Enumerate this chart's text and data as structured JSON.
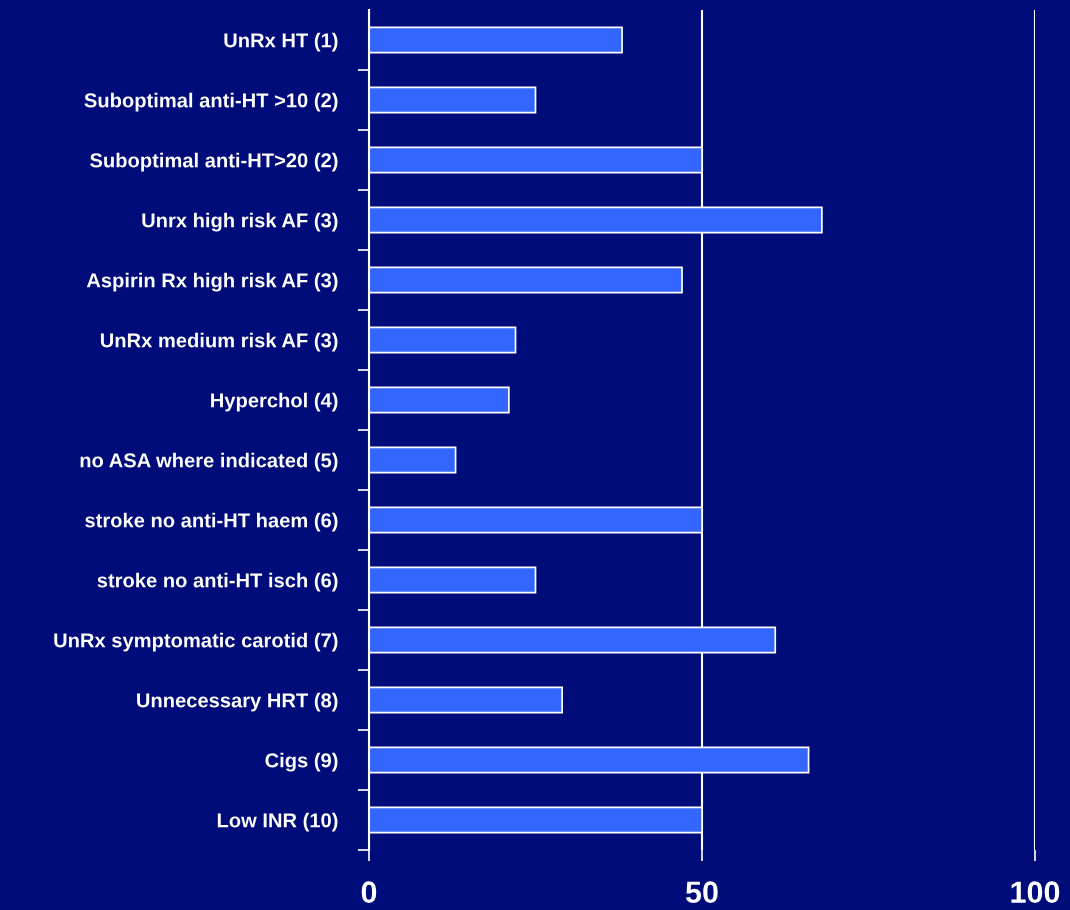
{
  "chart_data": {
    "type": "bar",
    "orientation": "horizontal",
    "categories": [
      "UnRx HT (1)",
      "Suboptimal anti-HT >10 (2)",
      "Suboptimal anti-HT>20 (2)",
      "Unrx high risk AF (3)",
      "Aspirin Rx high risk AF (3)",
      "UnRx medium risk AF (3)",
      "Hyperchol (4)",
      "no ASA where indicated (5)",
      "stroke no anti-HT haem (6)",
      "stroke no anti-HT isch (6)",
      "UnRx symptomatic carotid (7)",
      "Unnecessary HRT (8)",
      "Cigs (9)",
      "Low INR (10)"
    ],
    "values": [
      38,
      25,
      50,
      68,
      47,
      22,
      21,
      13,
      50,
      25,
      61,
      29,
      66,
      50
    ],
    "color": "#3366ff",
    "xlim": [
      0,
      100
    ],
    "xticks": [
      0,
      50,
      100
    ],
    "grid": "x"
  }
}
